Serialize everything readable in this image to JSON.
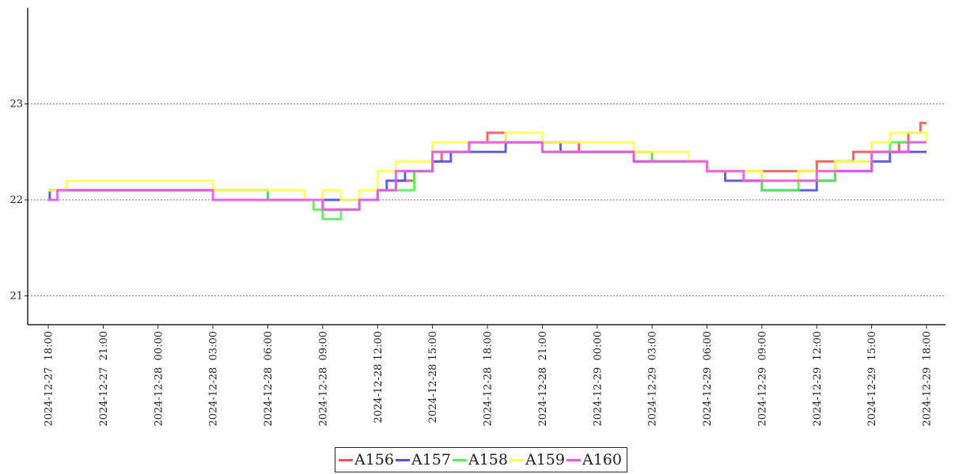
{
  "chart_data": {
    "type": "line",
    "title": "",
    "xlabel": "",
    "ylabel": "",
    "ylim": [
      20.7,
      24.0
    ],
    "yticks": [
      21,
      22,
      23
    ],
    "ytick_labels": [
      "21",
      "22",
      "23"
    ],
    "xlim": [
      "2024-12-27 17:30",
      "2024-12-29 18:30"
    ],
    "xticks": [
      "2024-12-27 18:00",
      "2024-12-27 21:00",
      "2024-12-28 00:00",
      "2024-12-28 03:00",
      "2024-12-28 06:00",
      "2024-12-28 09:00",
      "2024-12-28 12:00",
      "2024-12-28 15:00",
      "2024-12-28 18:00",
      "2024-12-28 21:00",
      "2024-12-29 00:00",
      "2024-12-29 03:00",
      "2024-12-29 06:00",
      "2024-12-29 09:00",
      "2024-12-29 12:00",
      "2024-12-29 15:00",
      "2024-12-29 18:00"
    ],
    "xtick_labels": [
      "2024-12-27  18:00",
      "2024-12-27  21:00",
      "2024-12-28  00:00",
      "2024-12-28  03:00",
      "2024-12-28  06:00",
      "2024-12-28  09:00",
      "2024-12-28 12:00",
      "2024-12-28 15:00",
      "2024-12-28  18:00",
      "2024-12-28  21:00",
      "2024-12-29  00:00",
      "2024-12-29  03:00",
      "2024-12-29  06:00",
      "2024-12-29  09:00",
      "2024-12-29  12:00",
      "2024-12-29  15:00",
      "2024-12-29  18:00"
    ],
    "grid": "horizontal-dotted",
    "legend_position": "bottom-center",
    "series": [
      {
        "name": "A156",
        "color": "#f25555",
        "points": [
          [
            "2024-12-27 18:00",
            22.1
          ],
          [
            "2024-12-28 06:00",
            22.0
          ],
          [
            "2024-12-28 09:00",
            21.9
          ],
          [
            "2024-12-28 10:00",
            21.9
          ],
          [
            "2024-12-28 11:00",
            22.0
          ],
          [
            "2024-12-28 12:00",
            22.1
          ],
          [
            "2024-12-28 13:00",
            22.2
          ],
          [
            "2024-12-28 14:00",
            22.3
          ],
          [
            "2024-12-28 15:00",
            22.4
          ],
          [
            "2024-12-28 15:30",
            22.5
          ],
          [
            "2024-12-28 17:00",
            22.6
          ],
          [
            "2024-12-28 18:00",
            22.7
          ],
          [
            "2024-12-28 19:00",
            22.6
          ],
          [
            "2024-12-28 23:00",
            22.5
          ],
          [
            "2024-12-29 03:00",
            22.4
          ],
          [
            "2024-12-29 06:00",
            22.3
          ],
          [
            "2024-12-29 08:00",
            22.3
          ],
          [
            "2024-12-29 12:00",
            22.4
          ],
          [
            "2024-12-29 14:00",
            22.5
          ],
          [
            "2024-12-29 16:30",
            22.6
          ],
          [
            "2024-12-29 17:00",
            22.7
          ],
          [
            "2024-12-29 17:40",
            22.8
          ],
          [
            "2024-12-29 18:00",
            22.8
          ]
        ]
      },
      {
        "name": "A157",
        "color": "#5050e0",
        "points": [
          [
            "2024-12-27 18:00",
            22.0
          ],
          [
            "2024-12-27 18:05",
            22.1
          ],
          [
            "2024-12-28 05:00",
            22.1
          ],
          [
            "2024-12-28 06:00",
            22.0
          ],
          [
            "2024-12-28 11:30",
            22.0
          ],
          [
            "2024-12-28 12:00",
            22.1
          ],
          [
            "2024-12-28 12:30",
            22.2
          ],
          [
            "2024-12-28 13:30",
            22.3
          ],
          [
            "2024-12-28 15:00",
            22.4
          ],
          [
            "2024-12-28 16:00",
            22.5
          ],
          [
            "2024-12-28 19:00",
            22.6
          ],
          [
            "2024-12-28 22:00",
            22.5
          ],
          [
            "2024-12-29 01:00",
            22.5
          ],
          [
            "2024-12-29 02:00",
            22.4
          ],
          [
            "2024-12-29 06:00",
            22.3
          ],
          [
            "2024-12-29 07:00",
            22.2
          ],
          [
            "2024-12-29 09:00",
            22.1
          ],
          [
            "2024-12-29 11:00",
            22.1
          ],
          [
            "2024-12-29 12:00",
            22.2
          ],
          [
            "2024-12-29 13:00",
            22.3
          ],
          [
            "2024-12-29 15:00",
            22.4
          ],
          [
            "2024-12-29 16:00",
            22.5
          ],
          [
            "2024-12-29 18:00",
            22.5
          ]
        ]
      },
      {
        "name": "A158",
        "color": "#55f055",
        "points": [
          [
            "2024-12-27 18:00",
            22.1
          ],
          [
            "2024-12-28 04:00",
            22.1
          ],
          [
            "2024-12-28 06:00",
            22.0
          ],
          [
            "2024-12-28 08:30",
            21.9
          ],
          [
            "2024-12-28 09:00",
            21.8
          ],
          [
            "2024-12-28 10:00",
            21.9
          ],
          [
            "2024-12-28 11:00",
            22.0
          ],
          [
            "2024-12-28 12:00",
            22.1
          ],
          [
            "2024-12-28 14:00",
            22.3
          ],
          [
            "2024-12-28 15:00",
            22.5
          ],
          [
            "2024-12-28 17:00",
            22.6
          ],
          [
            "2024-12-28 21:00",
            22.5
          ],
          [
            "2024-12-29 03:00",
            22.4
          ],
          [
            "2024-12-29 06:00",
            22.3
          ],
          [
            "2024-12-29 09:00",
            22.1
          ],
          [
            "2024-12-29 11:00",
            22.2
          ],
          [
            "2024-12-29 13:00",
            22.4
          ],
          [
            "2024-12-29 15:00",
            22.5
          ],
          [
            "2024-12-29 16:00",
            22.6
          ],
          [
            "2024-12-29 18:00",
            22.6
          ]
        ]
      },
      {
        "name": "A159",
        "color": "#ffff55",
        "points": [
          [
            "2024-12-27 18:00",
            22.1
          ],
          [
            "2024-12-27 19:00",
            22.2
          ],
          [
            "2024-12-28 03:00",
            22.1
          ],
          [
            "2024-12-28 06:00",
            22.1
          ],
          [
            "2024-12-28 08:00",
            22.0
          ],
          [
            "2024-12-28 09:00",
            22.1
          ],
          [
            "2024-12-28 10:00",
            22.0
          ],
          [
            "2024-12-28 11:00",
            22.1
          ],
          [
            "2024-12-28 12:00",
            22.3
          ],
          [
            "2024-12-28 13:00",
            22.4
          ],
          [
            "2024-12-28 15:00",
            22.6
          ],
          [
            "2024-12-28 17:00",
            22.6
          ],
          [
            "2024-12-28 19:00",
            22.7
          ],
          [
            "2024-12-28 21:00",
            22.6
          ],
          [
            "2024-12-29 00:00",
            22.6
          ],
          [
            "2024-12-29 02:00",
            22.5
          ],
          [
            "2024-12-29 05:00",
            22.4
          ],
          [
            "2024-12-29 06:00",
            22.3
          ],
          [
            "2024-12-29 09:00",
            22.2
          ],
          [
            "2024-12-29 11:00",
            22.3
          ],
          [
            "2024-12-29 13:00",
            22.4
          ],
          [
            "2024-12-29 15:00",
            22.6
          ],
          [
            "2024-12-29 16:00",
            22.7
          ],
          [
            "2024-12-29 18:00",
            22.6
          ]
        ]
      },
      {
        "name": "A160",
        "color": "#ee55ee",
        "points": [
          [
            "2024-12-27 18:00",
            22.0
          ],
          [
            "2024-12-27 18:30",
            22.1
          ],
          [
            "2024-12-28 03:00",
            22.0
          ],
          [
            "2024-12-28 06:00",
            22.0
          ],
          [
            "2024-12-28 09:00",
            21.9
          ],
          [
            "2024-12-28 11:00",
            22.0
          ],
          [
            "2024-12-28 12:00",
            22.1
          ],
          [
            "2024-12-28 13:00",
            22.3
          ],
          [
            "2024-12-28 15:00",
            22.5
          ],
          [
            "2024-12-28 17:00",
            22.6
          ],
          [
            "2024-12-28 21:00",
            22.5
          ],
          [
            "2024-12-29 02:00",
            22.4
          ],
          [
            "2024-12-29 06:00",
            22.3
          ],
          [
            "2024-12-29 08:00",
            22.2
          ],
          [
            "2024-12-29 10:00",
            22.2
          ],
          [
            "2024-12-29 12:00",
            22.3
          ],
          [
            "2024-12-29 15:00",
            22.5
          ],
          [
            "2024-12-29 17:00",
            22.6
          ],
          [
            "2024-12-29 18:00",
            22.6
          ]
        ]
      }
    ]
  }
}
